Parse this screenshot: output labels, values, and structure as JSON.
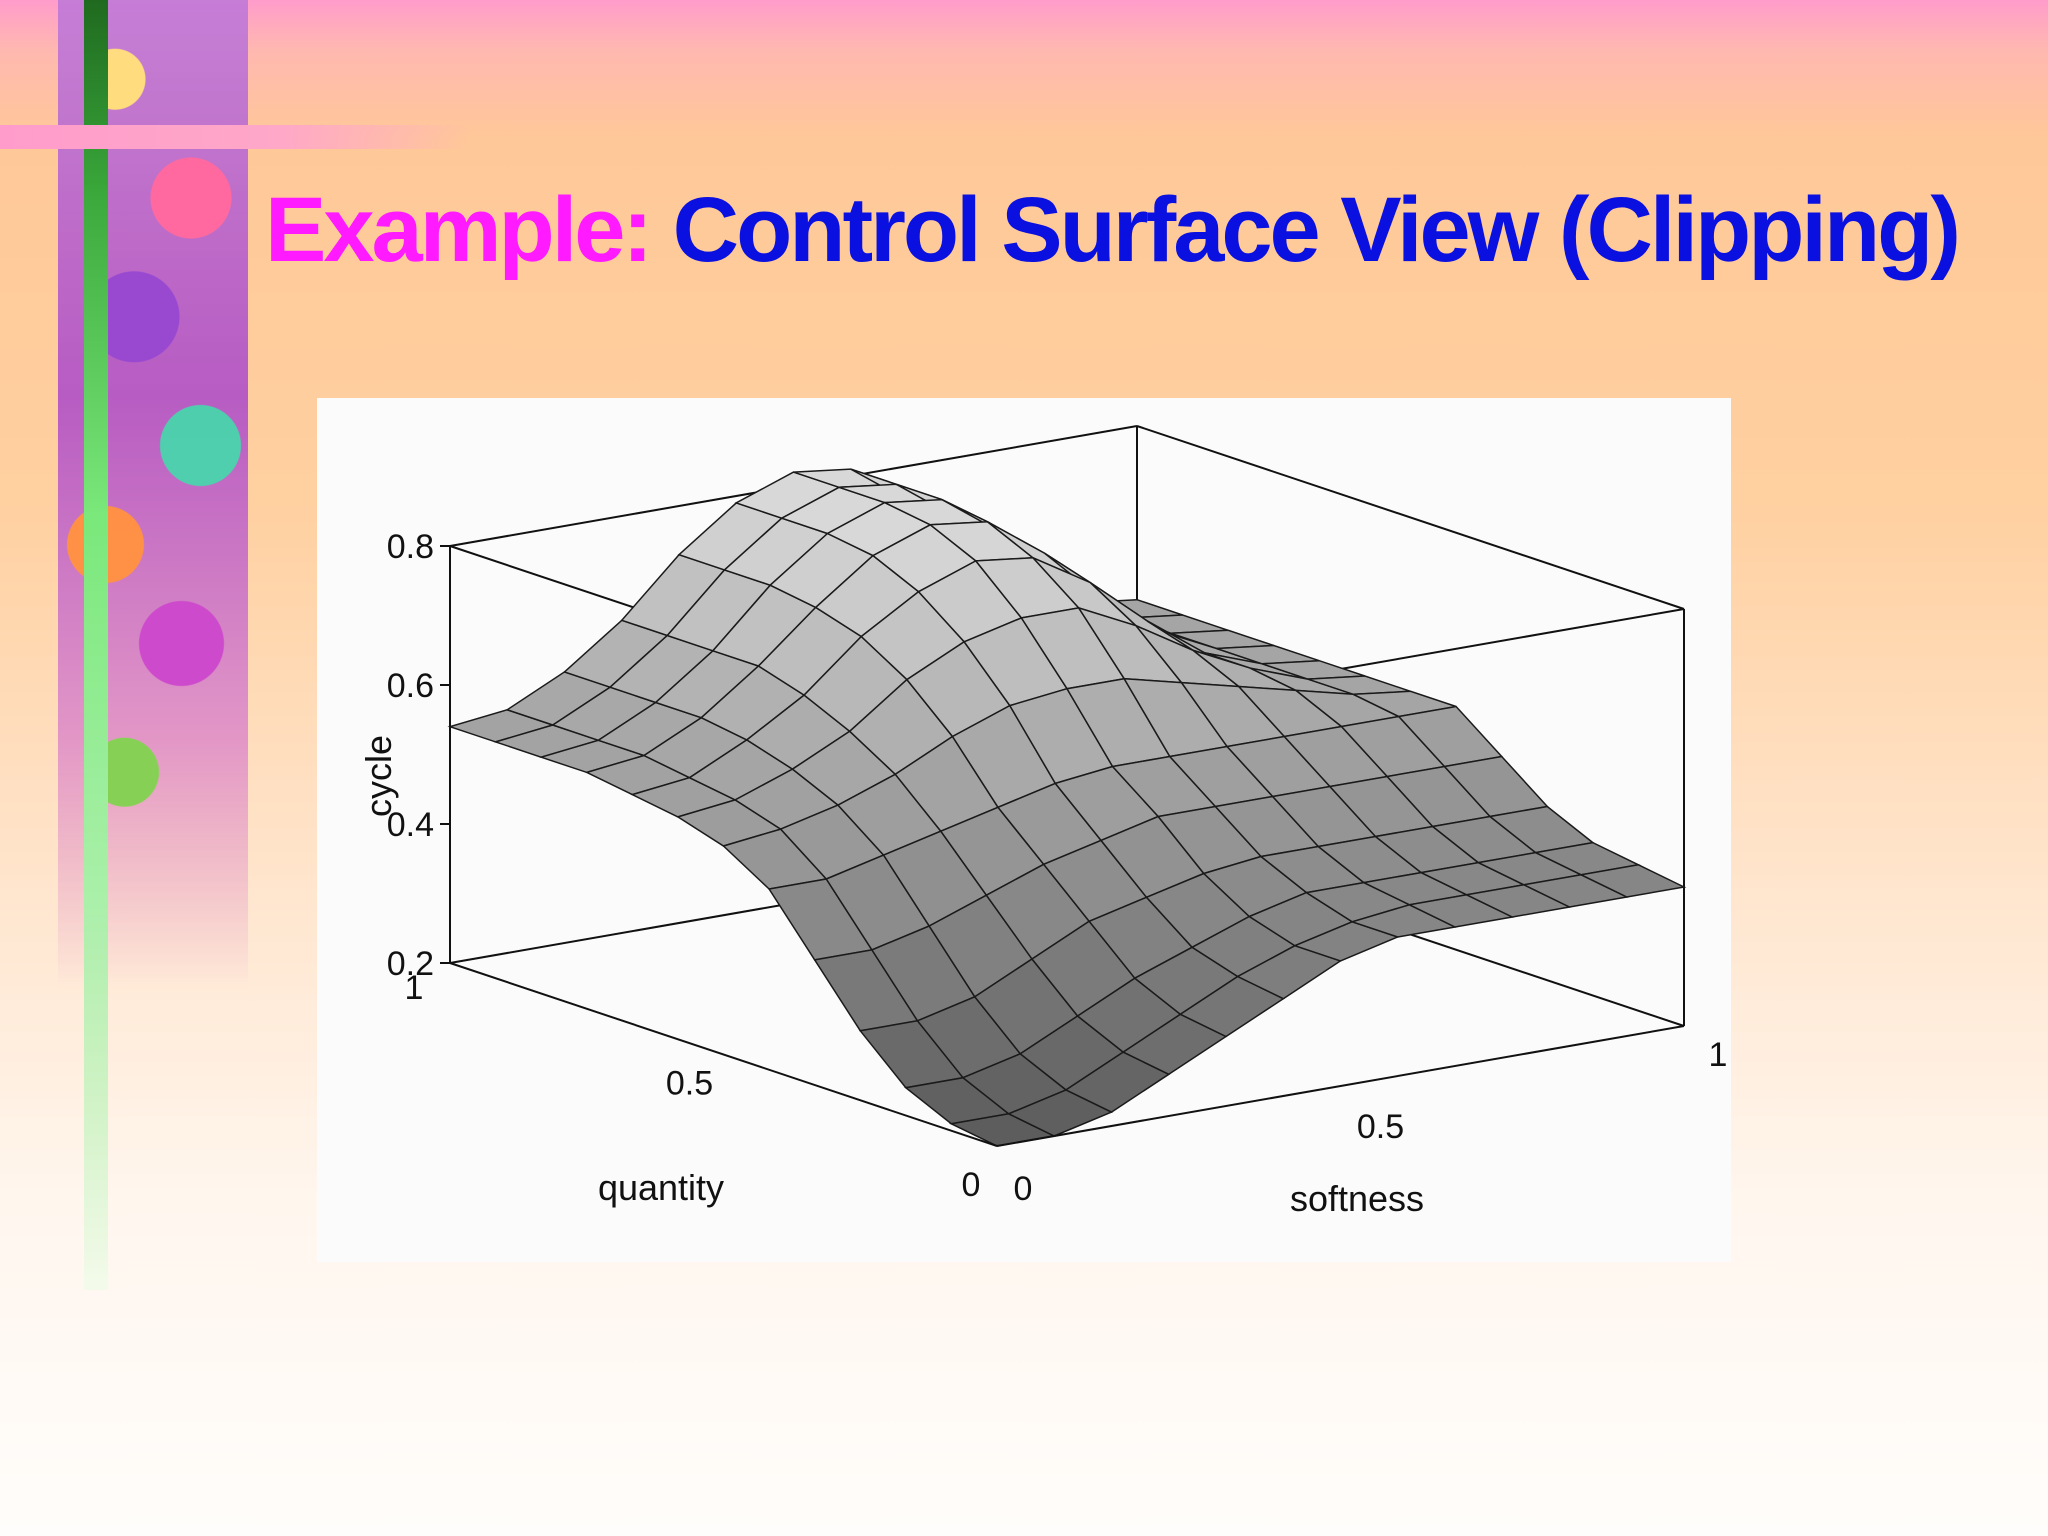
{
  "slide": {
    "title_prefix": "Example:",
    "title_main": " Control Surface View (Clipping)"
  },
  "chart_data": {
    "type": "surface",
    "title": "",
    "xlabel": "softness",
    "ylabel": "quantity",
    "zlabel": "cycle",
    "xlim": [
      0,
      1
    ],
    "ylim": [
      0,
      1
    ],
    "zlim": [
      0.2,
      0.8
    ],
    "x_ticks": [
      "0",
      "0.5",
      "1"
    ],
    "y_ticks": [
      "0",
      "0.5",
      "1"
    ],
    "z_ticks": [
      "0.2",
      "0.4",
      "0.6",
      "0.8"
    ],
    "x_grid": [
      0,
      0.0833,
      0.1667,
      0.25,
      0.3333,
      0.4167,
      0.5,
      0.5833,
      0.6667,
      0.75,
      0.8333,
      0.9167,
      1
    ],
    "y_grid": [
      0,
      0.0833,
      0.1667,
      0.25,
      0.3333,
      0.4167,
      0.5,
      0.5833,
      0.6667,
      0.75,
      0.8333,
      0.9167,
      1
    ],
    "z_values": [
      [
        0.2,
        0.2,
        0.22,
        0.26,
        0.3,
        0.34,
        0.38,
        0.4,
        0.4,
        0.4,
        0.4,
        0.4,
        0.4
      ],
      [
        0.21,
        0.21,
        0.23,
        0.27,
        0.31,
        0.35,
        0.38,
        0.4,
        0.41,
        0.41,
        0.41,
        0.41,
        0.41
      ],
      [
        0.24,
        0.24,
        0.26,
        0.3,
        0.34,
        0.37,
        0.4,
        0.42,
        0.42,
        0.42,
        0.42,
        0.42,
        0.42
      ],
      [
        0.3,
        0.3,
        0.32,
        0.36,
        0.4,
        0.42,
        0.44,
        0.45,
        0.45,
        0.45,
        0.45,
        0.45,
        0.45
      ],
      [
        0.38,
        0.38,
        0.4,
        0.43,
        0.46,
        0.48,
        0.5,
        0.5,
        0.5,
        0.5,
        0.5,
        0.5,
        0.5
      ],
      [
        0.46,
        0.46,
        0.48,
        0.5,
        0.52,
        0.54,
        0.55,
        0.55,
        0.55,
        0.55,
        0.55,
        0.55,
        0.55
      ],
      [
        0.5,
        0.51,
        0.53,
        0.56,
        0.6,
        0.63,
        0.64,
        0.64,
        0.62,
        0.6,
        0.58,
        0.56,
        0.55
      ],
      [
        0.52,
        0.53,
        0.56,
        0.6,
        0.66,
        0.7,
        0.72,
        0.72,
        0.68,
        0.63,
        0.59,
        0.56,
        0.55
      ],
      [
        0.53,
        0.54,
        0.58,
        0.63,
        0.7,
        0.75,
        0.78,
        0.77,
        0.72,
        0.65,
        0.59,
        0.56,
        0.55
      ],
      [
        0.54,
        0.55,
        0.59,
        0.65,
        0.72,
        0.78,
        0.81,
        0.8,
        0.74,
        0.66,
        0.6,
        0.56,
        0.55
      ],
      [
        0.54,
        0.55,
        0.59,
        0.65,
        0.73,
        0.79,
        0.82,
        0.81,
        0.75,
        0.66,
        0.6,
        0.56,
        0.55
      ],
      [
        0.54,
        0.55,
        0.59,
        0.65,
        0.73,
        0.79,
        0.82,
        0.81,
        0.75,
        0.66,
        0.6,
        0.56,
        0.55
      ],
      [
        0.54,
        0.55,
        0.59,
        0.65,
        0.73,
        0.79,
        0.82,
        0.81,
        0.75,
        0.66,
        0.6,
        0.56,
        0.55
      ]
    ],
    "grid": true,
    "box": true,
    "colors": {
      "surface_light": "#d8d8d8",
      "surface_dark": "#5c5c5c",
      "mesh_line": "#1a1a1a",
      "box_line": "#111111"
    }
  }
}
